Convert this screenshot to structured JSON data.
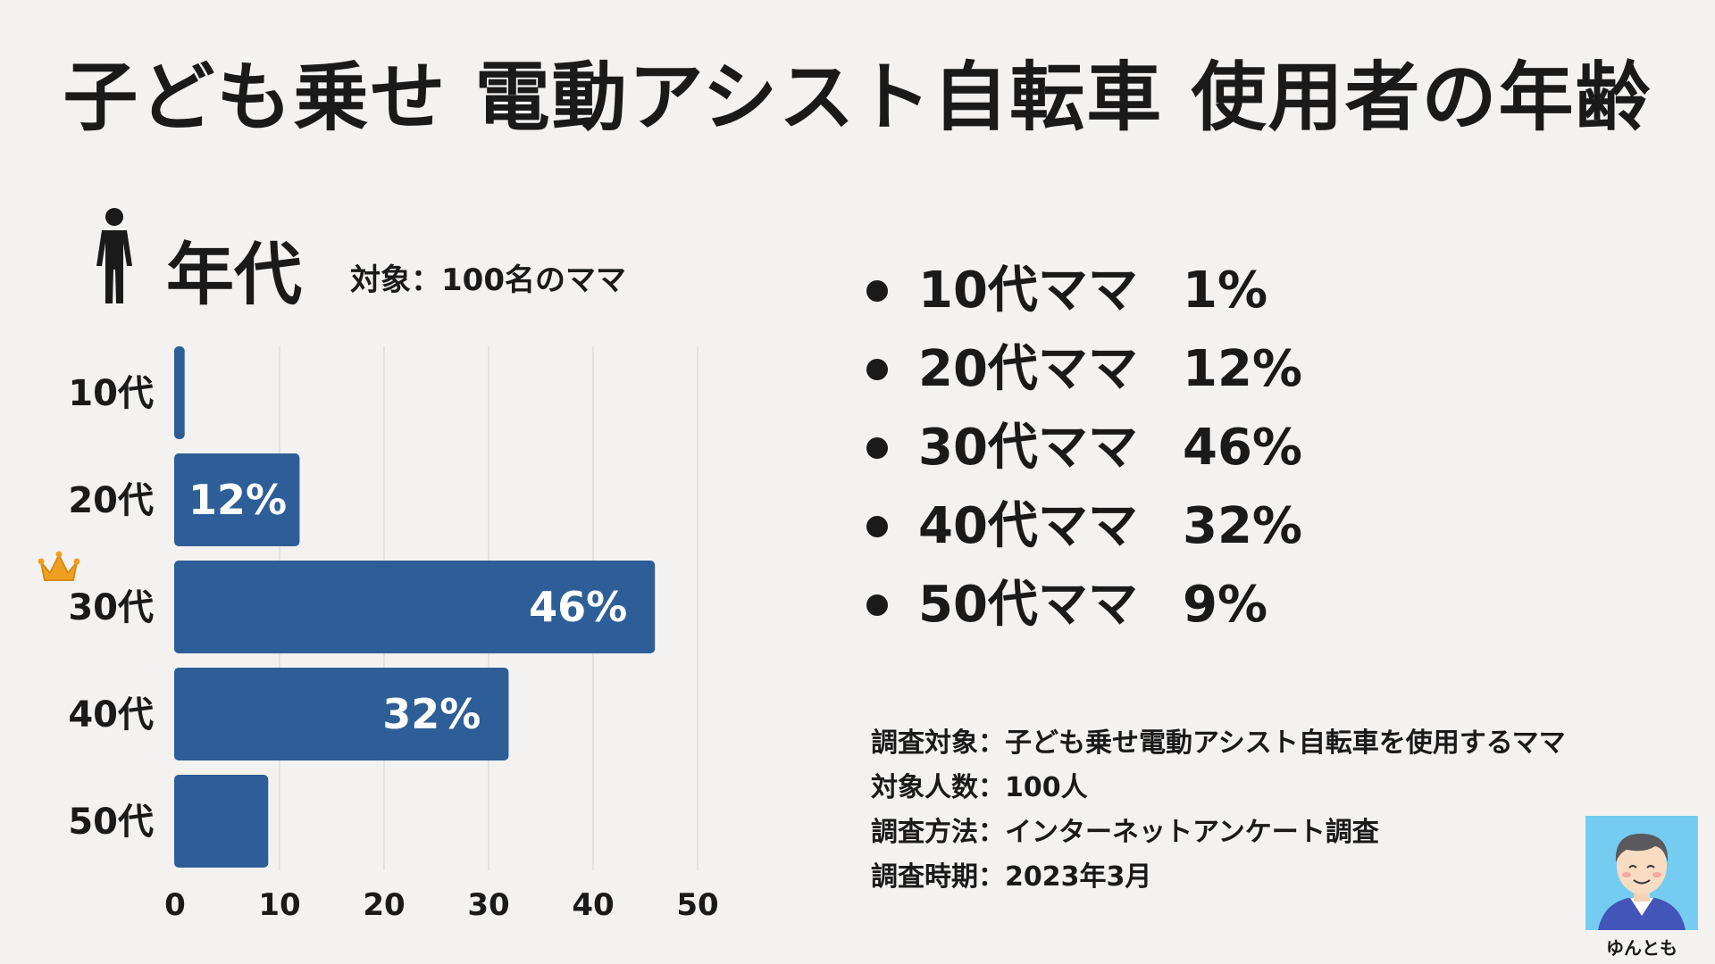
{
  "title": "子ども乗せ 電動アシスト自転車 使用者の年齢",
  "section": {
    "title": "年代",
    "subject": "対象：100名のママ"
  },
  "chart_data": {
    "type": "bar",
    "orientation": "horizontal",
    "categories": [
      "10代",
      "20代",
      "30代",
      "40代",
      "50代"
    ],
    "values": [
      1,
      12,
      46,
      32,
      9
    ],
    "bar_labels": [
      "",
      "12%",
      "46%",
      "32%",
      ""
    ],
    "xlim": [
      0,
      50
    ],
    "xticks": [
      "0",
      "10",
      "20",
      "30",
      "40",
      "50"
    ],
    "grid": true,
    "bar_color": "#2e5e97",
    "highlight": "30代"
  },
  "bullets": [
    {
      "label": "10代ママ",
      "value": "1%"
    },
    {
      "label": "20代ママ",
      "value": "12%"
    },
    {
      "label": "30代ママ",
      "value": "46%"
    },
    {
      "label": "40代ママ",
      "value": "32%"
    },
    {
      "label": "50代ママ",
      "value": "9%"
    }
  ],
  "survey": [
    "調査対象：子ども乗せ電動アシスト自転車を使用するママ",
    "対象人数：100人",
    "調査方法：インターネットアンケート調査",
    "調査時期：2023年3月"
  ],
  "avatar": {
    "name": "ゆんとも"
  },
  "icons": {
    "person": "person-icon",
    "crown": "crown-icon"
  }
}
